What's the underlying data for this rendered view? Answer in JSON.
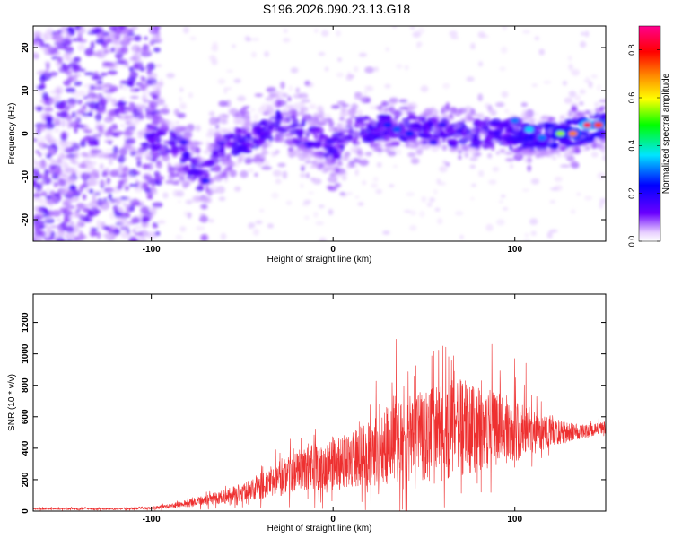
{
  "title": "S196.2026.090.23.13.G18",
  "chart_data": [
    {
      "type": "heatmap",
      "name": "spectrogram",
      "xlabel": "Height of straight line (km)",
      "ylabel": "Frequency (Hz)",
      "xlim": [
        -165,
        150
      ],
      "ylim": [
        -25,
        25
      ],
      "xticks": [
        -100,
        0,
        100
      ],
      "yticks": [
        -20,
        -10,
        0,
        10,
        20
      ],
      "colorbar": {
        "label": "Normalized spectral amplitude",
        "range": [
          0.0,
          0.9
        ],
        "ticks": [
          0.0,
          0.2,
          0.4,
          0.6,
          0.8
        ],
        "tick_labels": [
          "0.0",
          "0.2",
          "0.4",
          "0.6",
          "0.8"
        ],
        "colors": [
          "#ffffff",
          "#6a00ff",
          "#0000ff",
          "#00e5ff",
          "#00ff00",
          "#ffff00",
          "#ff8800",
          "#ff0000",
          "#ff0090"
        ]
      },
      "ridge": {
        "x": [
          -165,
          -130,
          -100,
          -85,
          -72,
          -60,
          -45,
          -30,
          -15,
          0,
          15,
          30,
          50,
          70,
          90,
          110,
          130,
          150
        ],
        "y": [
          -2,
          -1,
          -1,
          -3,
          -11,
          -3,
          -1,
          2,
          0,
          -4,
          1,
          2,
          1,
          0,
          0,
          -1,
          0,
          2
        ]
      },
      "peaks": [
        {
          "x": 140,
          "y": 2,
          "amp": 0.85
        },
        {
          "x": 132,
          "y": 0,
          "amp": 0.7
        },
        {
          "x": 146,
          "y": 2,
          "amp": 0.75
        },
        {
          "x": 125,
          "y": 0,
          "amp": 0.55
        },
        {
          "x": 100,
          "y": 3,
          "amp": 0.3
        },
        {
          "x": 108,
          "y": 1,
          "amp": 0.35
        },
        {
          "x": 115,
          "y": -1,
          "amp": 0.3
        },
        {
          "x": 35,
          "y": 1,
          "amp": 0.28
        },
        {
          "x": 30,
          "y": 2,
          "amp": 0.25
        },
        {
          "x": 42,
          "y": 0,
          "amp": 0.25
        },
        {
          "x": 55,
          "y": -2,
          "amp": 0.2
        },
        {
          "x": -70,
          "y": -11,
          "amp": 0.22
        },
        {
          "x": -82,
          "y": -2,
          "amp": 0.2
        },
        {
          "x": 60,
          "y": 2,
          "amp": 0.2
        }
      ]
    },
    {
      "type": "line",
      "name": "snr",
      "xlabel": "Height of straight line (km)",
      "ylabel": "SNR (10 * v/v)",
      "xlim": [
        -165,
        150
      ],
      "ylim": [
        0,
        1380
      ],
      "xticks": [
        -100,
        0,
        100
      ],
      "yticks": [
        0,
        200,
        400,
        600,
        800,
        1000,
        1200
      ],
      "color": "#ee3030",
      "envelope": {
        "x": [
          -165,
          -120,
          -100,
          -90,
          -80,
          -70,
          -60,
          -50,
          -40,
          -30,
          -20,
          -10,
          0,
          10,
          20,
          30,
          40,
          50,
          60,
          70,
          80,
          90,
          100,
          110,
          120,
          130,
          140,
          150
        ],
        "mean": [
          15,
          15,
          20,
          30,
          50,
          70,
          90,
          120,
          160,
          220,
          260,
          280,
          300,
          330,
          370,
          420,
          450,
          480,
          500,
          520,
          520,
          520,
          510,
          500,
          500,
          500,
          510,
          530
        ],
        "spread": [
          12,
          12,
          15,
          25,
          45,
          60,
          80,
          110,
          150,
          200,
          240,
          270,
          280,
          320,
          380,
          450,
          500,
          530,
          560,
          540,
          500,
          430,
          360,
          250,
          170,
          110,
          70,
          70
        ]
      }
    }
  ]
}
